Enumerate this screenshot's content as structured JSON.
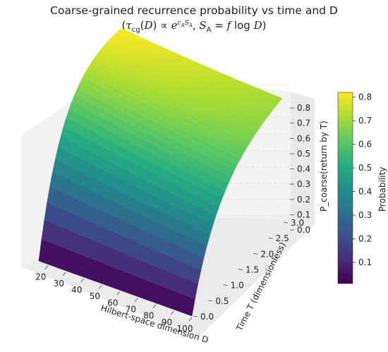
{
  "chart_data": {
    "type": "surface",
    "title": "Coarse-grained recurrence probability vs time and D",
    "subtitle_text": "(τcg(D) ∝ e^(cA·SA), SA = f log D)",
    "xlabel": "Hilbert-space dimension D",
    "ylabel": "Time T (dimensionless)",
    "zlabel": "P_coarse(return by T)",
    "colorbar_label": "Probability",
    "colormap": "viridis",
    "x_ticks": [
      "20",
      "30",
      "40",
      "50",
      "60",
      "70",
      "80",
      "90",
      "100"
    ],
    "y_ticks": [
      "0.0",
      "0.5",
      "1.0",
      "1.5",
      "2.0",
      "2.5",
      "3.0"
    ],
    "z_ticks": [
      "0.0",
      "0.1",
      "0.2",
      "0.3",
      "0.4",
      "0.5",
      "0.6",
      "0.7",
      "0.8"
    ],
    "colorbar_ticks": [
      "0.1",
      "0.2",
      "0.3",
      "0.4",
      "0.5",
      "0.6",
      "0.7",
      "0.8"
    ],
    "xlim": [
      15,
      100
    ],
    "ylim": [
      0,
      3
    ],
    "zlim": [
      0,
      0.82
    ],
    "colorbar_range": [
      0.01,
      0.82
    ],
    "surface": {
      "x": [
        15,
        100
      ],
      "t_max": 3.0,
      "p_at_tmax_x15": 0.82,
      "p_at_tmax_x100": 0.71
    },
    "grid": true
  }
}
